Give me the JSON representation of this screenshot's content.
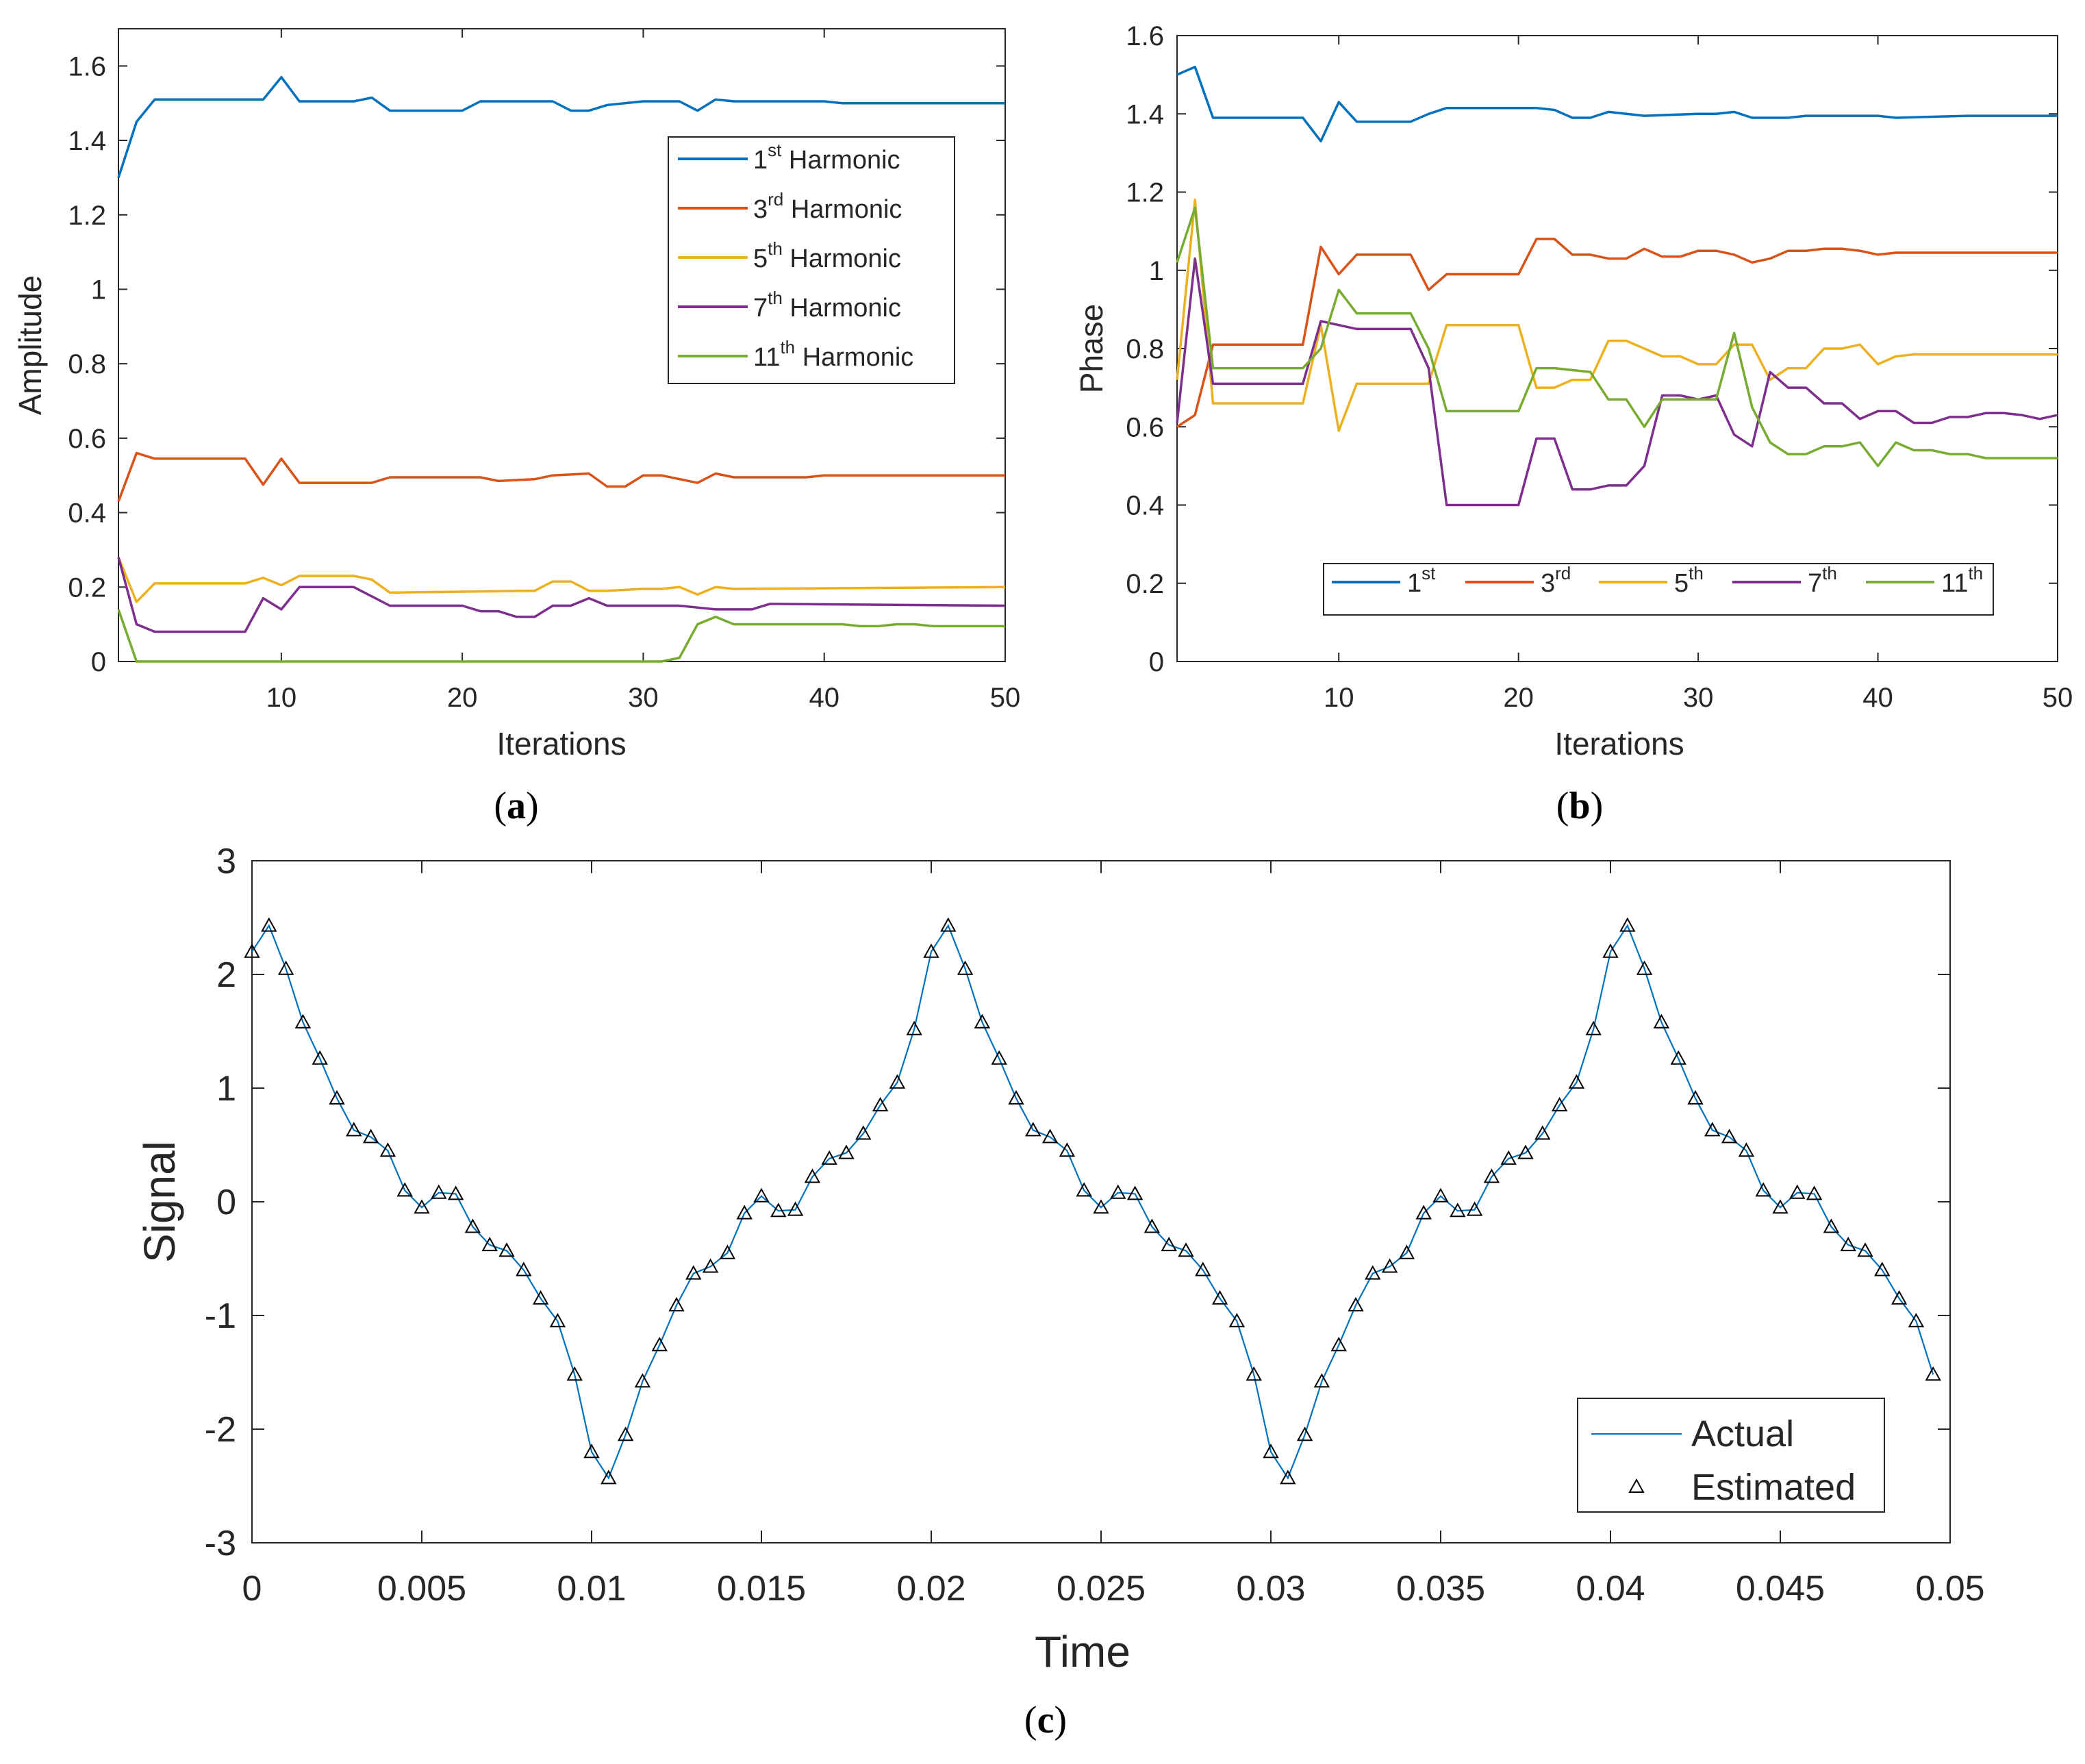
{
  "colors": {
    "h1": "#0072BD",
    "h3": "#D95319",
    "h5": "#EDB120",
    "h7": "#7E2F8E",
    "h11": "#77AC30",
    "actual": "#0072BD",
    "estimated_marker": "#000000"
  },
  "chart_data": [
    {
      "id": "a",
      "type": "line",
      "caption": "(a)",
      "caption_letter": "a",
      "xlabel": "Iterations",
      "ylabel": "Amplitude",
      "xlim": [
        1,
        50
      ],
      "ylim": [
        0,
        1.7
      ],
      "xticks": [
        10,
        20,
        30,
        40,
        50
      ],
      "xtick_labels": [
        "10",
        "20",
        "30",
        "40",
        "50"
      ],
      "yticks": [
        0,
        0.2,
        0.4,
        0.6,
        0.8,
        1,
        1.2,
        1.4,
        1.6
      ],
      "ytick_labels": [
        "0",
        "0.2",
        "0.4",
        "0.6",
        "0.8",
        "1",
        "1.2",
        "1.4",
        "1.6"
      ],
      "legend_position": "top-right",
      "series": [
        {
          "key": "h1",
          "name": "1",
          "sup": "st",
          "suffix": " Harmonic",
          "x": [
            1,
            2,
            3,
            5,
            8,
            9,
            10,
            11,
            14,
            15,
            16,
            20,
            21,
            25,
            26,
            27,
            28,
            30,
            32,
            33,
            34,
            35,
            40,
            41,
            50
          ],
          "y": [
            1.3,
            1.45,
            1.51,
            1.51,
            1.51,
            1.51,
            1.57,
            1.505,
            1.505,
            1.515,
            1.48,
            1.48,
            1.505,
            1.505,
            1.48,
            1.48,
            1.495,
            1.505,
            1.505,
            1.48,
            1.51,
            1.505,
            1.505,
            1.5,
            1.5
          ]
        },
        {
          "key": "h3",
          "name": "3",
          "sup": "rd",
          "suffix": " Harmonic",
          "x": [
            1,
            2,
            3,
            8,
            9,
            10,
            11,
            15,
            16,
            21,
            22,
            24,
            25,
            27,
            28,
            29,
            30,
            31,
            33,
            34,
            35,
            39,
            40,
            41,
            50
          ],
          "y": [
            0.43,
            0.56,
            0.545,
            0.545,
            0.475,
            0.545,
            0.48,
            0.48,
            0.495,
            0.495,
            0.485,
            0.49,
            0.5,
            0.505,
            0.47,
            0.47,
            0.5,
            0.5,
            0.48,
            0.505,
            0.495,
            0.495,
            0.5,
            0.5,
            0.5
          ]
        },
        {
          "key": "h5",
          "name": "5",
          "sup": "th",
          "suffix": " Harmonic",
          "x": [
            1,
            2,
            3,
            8,
            9,
            10,
            11,
            14,
            15,
            16,
            24,
            25,
            26,
            27,
            28,
            30,
            31,
            32,
            33,
            34,
            35,
            50
          ],
          "y": [
            0.28,
            0.16,
            0.21,
            0.21,
            0.225,
            0.205,
            0.23,
            0.23,
            0.22,
            0.185,
            0.19,
            0.215,
            0.215,
            0.19,
            0.19,
            0.195,
            0.195,
            0.2,
            0.18,
            0.2,
            0.195,
            0.2
          ]
        },
        {
          "key": "h7",
          "name": "7",
          "sup": "th",
          "suffix": " Harmonic",
          "x": [
            1,
            2,
            3,
            8,
            9,
            10,
            11,
            14,
            16,
            20,
            21,
            22,
            23,
            24,
            25,
            26,
            27,
            28,
            30,
            32,
            33,
            34,
            35,
            36,
            37,
            50
          ],
          "y": [
            0.28,
            0.1,
            0.08,
            0.08,
            0.17,
            0.14,
            0.2,
            0.2,
            0.15,
            0.15,
            0.135,
            0.135,
            0.12,
            0.12,
            0.15,
            0.15,
            0.17,
            0.15,
            0.15,
            0.15,
            0.145,
            0.14,
            0.14,
            0.14,
            0.155,
            0.15
          ]
        },
        {
          "key": "h11",
          "name": "11",
          "sup": "th",
          "suffix": " Harmonic",
          "x": [
            1,
            2,
            3,
            31,
            32,
            33,
            34,
            35,
            36,
            41,
            42,
            43,
            44,
            45,
            46,
            50
          ],
          "y": [
            0.14,
            0.0,
            0.0,
            0.0,
            0.01,
            0.1,
            0.12,
            0.1,
            0.1,
            0.1,
            0.095,
            0.095,
            0.1,
            0.1,
            0.095,
            0.095
          ]
        }
      ]
    },
    {
      "id": "b",
      "type": "line",
      "caption": "(b)",
      "caption_letter": "b",
      "xlabel": "Iterations",
      "ylabel": "Phase",
      "xlim": [
        1,
        50
      ],
      "ylim": [
        0,
        1.6
      ],
      "xticks": [
        10,
        20,
        30,
        40,
        50
      ],
      "xtick_labels": [
        "10",
        "20",
        "30",
        "40",
        "50"
      ],
      "yticks": [
        0,
        0.2,
        0.4,
        0.6,
        0.8,
        1,
        1.2,
        1.4,
        1.6
      ],
      "ytick_labels": [
        "0",
        "0.2",
        "0.4",
        "0.6",
        "0.8",
        "1",
        "1.2",
        "1.4",
        "1.6"
      ],
      "legend_position": "bottom, horizontal",
      "series": [
        {
          "key": "h1",
          "name": "1",
          "sup": "st",
          "suffix": "",
          "x": [
            1,
            2,
            3,
            8,
            9,
            10,
            11,
            14,
            15,
            16,
            21,
            22,
            23,
            24,
            25,
            27,
            30,
            31,
            32,
            33,
            35,
            36,
            40,
            41,
            45,
            50
          ],
          "y": [
            1.5,
            1.52,
            1.39,
            1.39,
            1.33,
            1.43,
            1.38,
            1.38,
            1.4,
            1.415,
            1.415,
            1.41,
            1.39,
            1.39,
            1.405,
            1.395,
            1.4,
            1.4,
            1.405,
            1.39,
            1.39,
            1.395,
            1.395,
            1.39,
            1.395,
            1.395
          ]
        },
        {
          "key": "h3",
          "name": "3",
          "sup": "rd",
          "suffix": "",
          "x": [
            1,
            2,
            3,
            8,
            9,
            10,
            11,
            14,
            15,
            16,
            20,
            21,
            22,
            23,
            24,
            25,
            26,
            27,
            28,
            29,
            30,
            31,
            32,
            33,
            34,
            35,
            36,
            37,
            38,
            39,
            40,
            41,
            50
          ],
          "y": [
            0.6,
            0.63,
            0.81,
            0.81,
            1.06,
            0.99,
            1.04,
            1.04,
            0.95,
            0.99,
            0.99,
            1.08,
            1.08,
            1.04,
            1.04,
            1.03,
            1.03,
            1.055,
            1.035,
            1.035,
            1.05,
            1.05,
            1.04,
            1.02,
            1.03,
            1.05,
            1.05,
            1.055,
            1.055,
            1.05,
            1.04,
            1.045,
            1.045
          ]
        },
        {
          "key": "h5",
          "name": "5",
          "sup": "th",
          "suffix": "",
          "x": [
            1,
            2,
            3,
            8,
            9,
            10,
            11,
            14,
            15,
            16,
            20,
            21,
            22,
            23,
            24,
            25,
            26,
            27,
            28,
            29,
            30,
            31,
            32,
            33,
            34,
            35,
            36,
            37,
            38,
            39,
            40,
            41,
            42,
            50
          ],
          "y": [
            0.72,
            1.18,
            0.66,
            0.66,
            0.86,
            0.59,
            0.71,
            0.71,
            0.71,
            0.86,
            0.86,
            0.7,
            0.7,
            0.72,
            0.72,
            0.82,
            0.82,
            0.8,
            0.78,
            0.78,
            0.76,
            0.76,
            0.81,
            0.81,
            0.72,
            0.75,
            0.75,
            0.8,
            0.8,
            0.81,
            0.76,
            0.78,
            0.785,
            0.785
          ]
        },
        {
          "key": "h7",
          "name": "7",
          "sup": "th",
          "suffix": "",
          "x": [
            1,
            2,
            3,
            8,
            9,
            10,
            11,
            14,
            15,
            16,
            20,
            21,
            22,
            23,
            24,
            25,
            26,
            27,
            28,
            29,
            30,
            31,
            32,
            33,
            34,
            35,
            36,
            37,
            38,
            39,
            40,
            41,
            42,
            43,
            44,
            45,
            46,
            47,
            48,
            49,
            50
          ],
          "y": [
            0.61,
            1.03,
            0.71,
            0.71,
            0.87,
            0.86,
            0.85,
            0.85,
            0.75,
            0.4,
            0.4,
            0.57,
            0.57,
            0.44,
            0.44,
            0.45,
            0.45,
            0.5,
            0.68,
            0.68,
            0.67,
            0.68,
            0.58,
            0.55,
            0.74,
            0.7,
            0.7,
            0.66,
            0.66,
            0.62,
            0.64,
            0.64,
            0.61,
            0.61,
            0.625,
            0.625,
            0.635,
            0.635,
            0.63,
            0.62,
            0.63
          ]
        },
        {
          "key": "h11",
          "name": "11",
          "sup": "th",
          "suffix": "",
          "x": [
            1,
            2,
            3,
            8,
            9,
            10,
            11,
            14,
            15,
            16,
            20,
            21,
            22,
            24,
            25,
            26,
            27,
            28,
            30,
            31,
            32,
            33,
            34,
            35,
            36,
            37,
            38,
            39,
            40,
            41,
            42,
            43,
            44,
            45,
            46,
            47,
            50
          ],
          "y": [
            1.02,
            1.16,
            0.75,
            0.75,
            0.8,
            0.95,
            0.89,
            0.89,
            0.8,
            0.64,
            0.64,
            0.75,
            0.75,
            0.74,
            0.67,
            0.67,
            0.6,
            0.67,
            0.67,
            0.67,
            0.84,
            0.65,
            0.56,
            0.53,
            0.53,
            0.55,
            0.55,
            0.56,
            0.5,
            0.56,
            0.54,
            0.54,
            0.53,
            0.53,
            0.52,
            0.52,
            0.52
          ]
        }
      ]
    },
    {
      "id": "c",
      "type": "line",
      "caption": "(c)",
      "caption_letter": "c",
      "xlabel": "Time",
      "ylabel": "Signal",
      "xlim": [
        0,
        0.05
      ],
      "ylim": [
        -3,
        3
      ],
      "xticks": [
        0,
        0.005,
        0.01,
        0.015,
        0.02,
        0.025,
        0.03,
        0.035,
        0.04,
        0.045,
        0.05
      ],
      "xtick_labels": [
        "0",
        "0.005",
        "0.01",
        "0.015",
        "0.02",
        "0.025",
        "0.03",
        "0.035",
        "0.04",
        "0.045",
        "0.05"
      ],
      "yticks": [
        -3,
        -2,
        -1,
        0,
        1,
        2,
        3
      ],
      "ytick_labels": [
        "-3",
        "-2",
        "-1",
        "0",
        "1",
        "2",
        "3"
      ],
      "legend_position": "bottom-right",
      "legend": {
        "actual": "Actual",
        "estimated": "Estimated"
      },
      "period": 0.02,
      "dt": 0.0005,
      "half_period_samples": [
        2.2,
        2.43,
        2.05,
        1.58,
        1.26,
        0.91,
        0.63,
        0.57,
        0.45,
        0.1,
        -0.05,
        0.08,
        0.07,
        -0.22,
        -0.38,
        -0.43,
        -0.6,
        -0.85,
        -1.05,
        -1.52
      ],
      "samples_shown": 100
    }
  ]
}
